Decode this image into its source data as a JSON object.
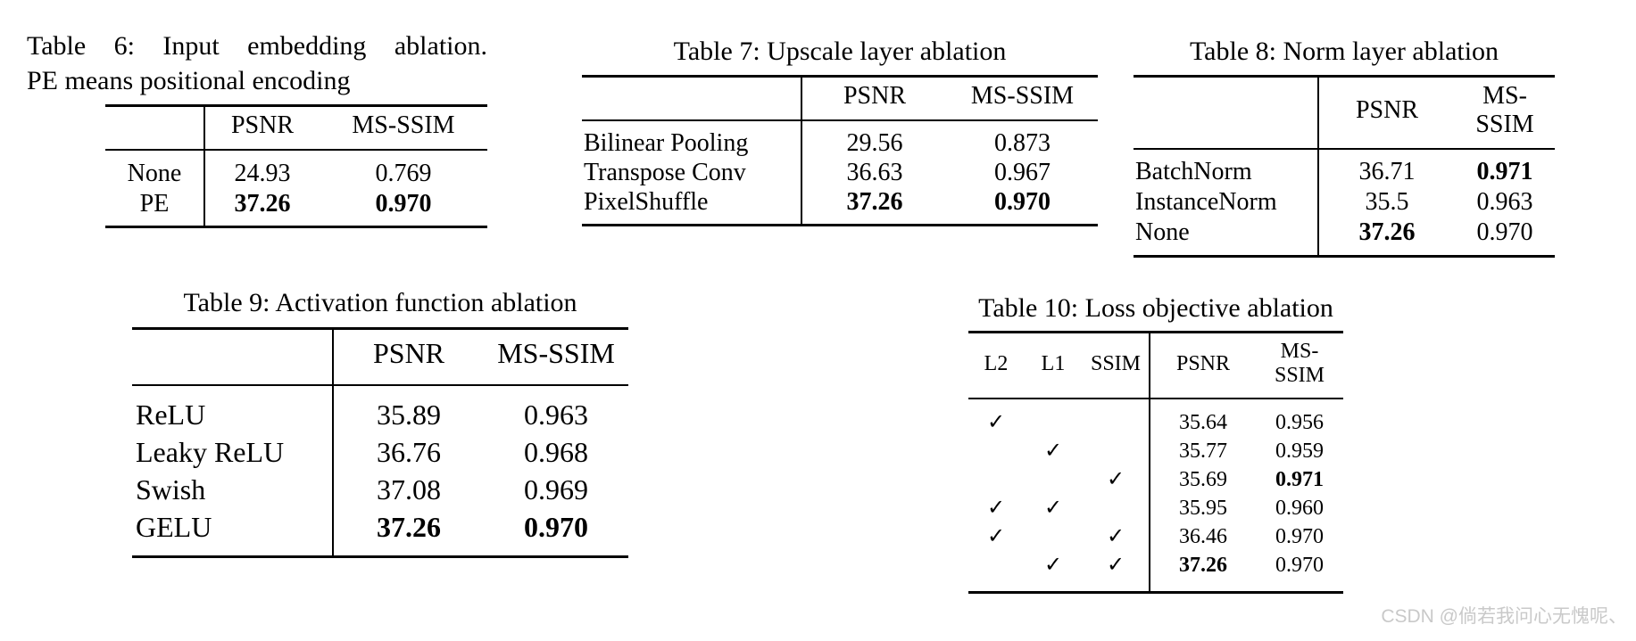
{
  "page": {
    "text_color": "#000000",
    "background_color": "#ffffff",
    "watermark": "CSDN @倘若我问心无愧呢、",
    "watermark_color": "#c9c9c9",
    "checkmark": "✓"
  },
  "tables": [
    {
      "id": "table-6",
      "caption_line1": "Table 6: Input embedding ablation.",
      "caption_line2": "PE means positional encoding",
      "columns": [
        "",
        "PSNR",
        "MS-SSIM"
      ],
      "rows": [
        {
          "label": "None",
          "values": [
            "24.93",
            "0.769"
          ],
          "bold": [
            false,
            false
          ]
        },
        {
          "label": "PE",
          "values": [
            "37.26",
            "0.970"
          ],
          "bold": [
            true,
            true
          ]
        }
      ]
    },
    {
      "id": "table-7",
      "caption": "Table 7: Upscale layer ablation",
      "columns": [
        "",
        "PSNR",
        "MS-SSIM"
      ],
      "rows": [
        {
          "label": "Bilinear Pooling",
          "values": [
            "29.56",
            "0.873"
          ],
          "bold": [
            false,
            false
          ]
        },
        {
          "label": "Transpose Conv",
          "values": [
            "36.63",
            "0.967"
          ],
          "bold": [
            false,
            false
          ]
        },
        {
          "label": "PixelShuffle",
          "values": [
            "37.26",
            "0.970"
          ],
          "bold": [
            true,
            true
          ]
        }
      ]
    },
    {
      "id": "table-8",
      "caption": "Table 8: Norm layer ablation",
      "columns": [
        "",
        "PSNR",
        "MS-SSIM"
      ],
      "rows": [
        {
          "label": "BatchNorm",
          "values": [
            "36.71",
            "0.971"
          ],
          "bold": [
            false,
            true
          ]
        },
        {
          "label": "InstanceNorm",
          "values": [
            "35.5",
            "0.963"
          ],
          "bold": [
            false,
            false
          ]
        },
        {
          "label": "None",
          "values": [
            "37.26",
            "0.970"
          ],
          "bold": [
            true,
            false
          ]
        }
      ]
    },
    {
      "id": "table-9",
      "caption": "Table 9: Activation function ablation",
      "columns": [
        "",
        "PSNR",
        "MS-SSIM"
      ],
      "rows": [
        {
          "label": "ReLU",
          "values": [
            "35.89",
            "0.963"
          ],
          "bold": [
            false,
            false
          ]
        },
        {
          "label": "Leaky ReLU",
          "values": [
            "36.76",
            "0.968"
          ],
          "bold": [
            false,
            false
          ]
        },
        {
          "label": "Swish",
          "values": [
            "37.08",
            "0.969"
          ],
          "bold": [
            false,
            false
          ]
        },
        {
          "label": "GELU",
          "values": [
            "37.26",
            "0.970"
          ],
          "bold": [
            true,
            true
          ]
        }
      ]
    },
    {
      "id": "table-10",
      "caption": "Table 10: Loss objective ablation",
      "check_columns": [
        "L2",
        "L1",
        "SSIM"
      ],
      "metric_columns": [
        "PSNR",
        "MS-SSIM"
      ],
      "rows": [
        {
          "checks": [
            true,
            false,
            false
          ],
          "values": [
            "35.64",
            "0.956"
          ],
          "bold": [
            false,
            false
          ]
        },
        {
          "checks": [
            false,
            true,
            false
          ],
          "values": [
            "35.77",
            "0.959"
          ],
          "bold": [
            false,
            false
          ]
        },
        {
          "checks": [
            false,
            false,
            true
          ],
          "values": [
            "35.69",
            "0.971"
          ],
          "bold": [
            false,
            true
          ]
        },
        {
          "checks": [
            true,
            true,
            false
          ],
          "values": [
            "35.95",
            "0.960"
          ],
          "bold": [
            false,
            false
          ]
        },
        {
          "checks": [
            true,
            false,
            true
          ],
          "values": [
            "36.46",
            "0.970"
          ],
          "bold": [
            false,
            false
          ]
        },
        {
          "checks": [
            false,
            true,
            true
          ],
          "values": [
            "37.26",
            "0.970"
          ],
          "bold": [
            true,
            false
          ]
        }
      ]
    }
  ]
}
